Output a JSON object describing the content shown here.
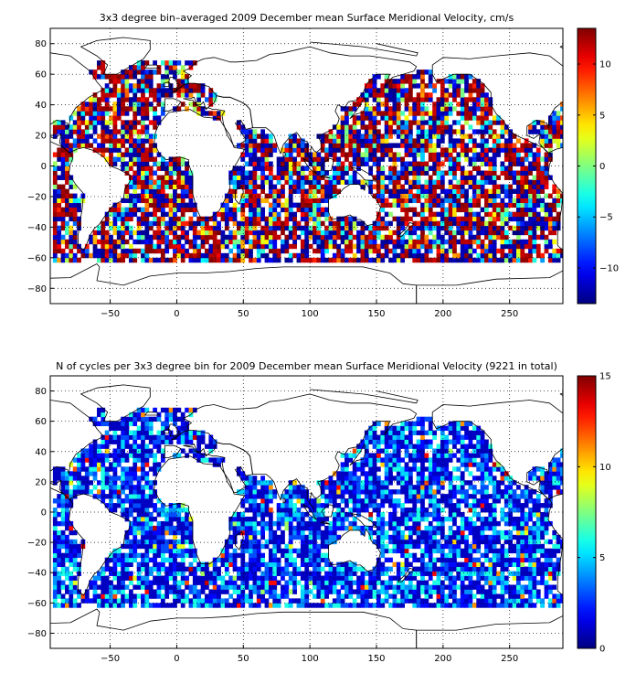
{
  "chart_data": [
    {
      "type": "heatmap",
      "title": "3x3 degree bin–averaged 2009 December mean Surface Meridional Velocity, cm/s",
      "xlim": [
        -95,
        290
      ],
      "ylim": [
        -90,
        90
      ],
      "xticks": [
        -50,
        0,
        50,
        100,
        150,
        200,
        250
      ],
      "yticks": [
        -80,
        -60,
        -40,
        -20,
        0,
        20,
        40,
        60,
        80
      ],
      "xtick_labels": [
        "−50",
        "0",
        "50",
        "100",
        "150",
        "200",
        "250"
      ],
      "ytick_labels": [
        "−80",
        "−60",
        "−40",
        "−20",
        "0",
        "20",
        "40",
        "60",
        "80"
      ],
      "grid": true,
      "bin_size_deg": 3,
      "colormap": "jet",
      "color_limits": [
        -13.5,
        13.5
      ],
      "colorbar_ticks": [
        -10,
        -5,
        0,
        5,
        10
      ],
      "colorbar_tick_labels": [
        "−10",
        "−5",
        "0",
        "5",
        "10"
      ],
      "ocean_regions_sampled": [
        {
          "lon": [
            -80,
            -10
          ],
          "lat": [
            -62,
            66
          ]
        },
        {
          "lon": [
            -10,
            20
          ],
          "lat": [
            -62,
            2
          ]
        },
        {
          "lon": [
            20,
            110
          ],
          "lat": [
            -62,
            25
          ]
        },
        {
          "lon": [
            115,
            290
          ],
          "lat": [
            -62,
            60
          ]
        }
      ]
    },
    {
      "type": "heatmap",
      "title": "N of cycles per 3x3 degree bin for 2009 December mean Surface Meridional Velocity (9221 in total)",
      "xlim": [
        -95,
        290
      ],
      "ylim": [
        -90,
        90
      ],
      "xticks": [
        -50,
        0,
        50,
        100,
        150,
        200,
        250
      ],
      "yticks": [
        -80,
        -60,
        -40,
        -20,
        0,
        20,
        40,
        60,
        80
      ],
      "xtick_labels": [
        "−50",
        "0",
        "50",
        "100",
        "150",
        "200",
        "250"
      ],
      "ytick_labels": [
        "−80",
        "−60",
        "−40",
        "−20",
        "0",
        "20",
        "40",
        "60",
        "80"
      ],
      "grid": true,
      "bin_size_deg": 3,
      "colormap": "jet",
      "color_limits": [
        0,
        15
      ],
      "colorbar_ticks": [
        0,
        5,
        10,
        15
      ],
      "colorbar_tick_labels": [
        "0",
        "5",
        "10",
        "15"
      ],
      "total_cycles": 9221,
      "typical_count_range": [
        1,
        6
      ],
      "max_count": 15
    }
  ]
}
